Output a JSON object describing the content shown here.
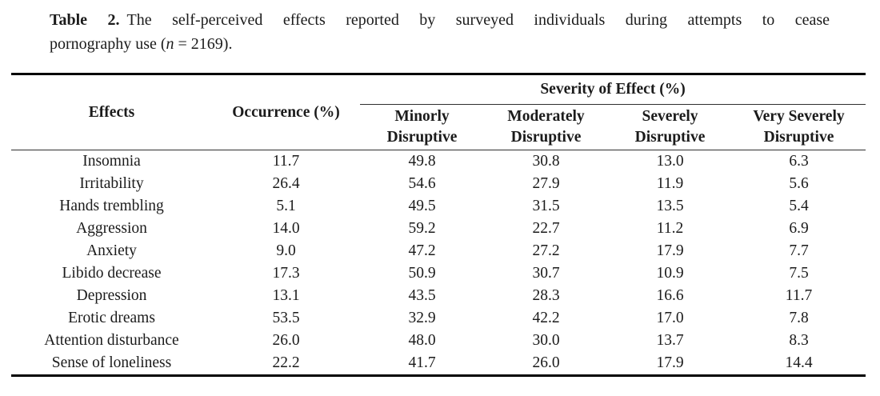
{
  "caption": {
    "label": "Table 2.",
    "line1": "The self-perceived effects reported by surveyed individuals during attempts to cease",
    "line2_prefix": "pornography use (",
    "line2_var": "n",
    "line2_suffix": " = 2169)."
  },
  "table": {
    "col_effects": "Effects",
    "col_occurrence": "Occurrence (%)",
    "severity_group": "Severity of Effect (%)",
    "severity_cols": [
      {
        "line1": "Minorly",
        "line2": "Disruptive"
      },
      {
        "line1": "Moderately",
        "line2": "Disruptive"
      },
      {
        "line1": "Severely",
        "line2": "Disruptive"
      },
      {
        "line1": "Very Severely",
        "line2": "Disruptive"
      }
    ],
    "rows": [
      {
        "effect": "Insomnia",
        "occurrence": "11.7",
        "minorly": "49.8",
        "moderately": "30.8",
        "severely": "13.0",
        "very_severely": "6.3"
      },
      {
        "effect": "Irritability",
        "occurrence": "26.4",
        "minorly": "54.6",
        "moderately": "27.9",
        "severely": "11.9",
        "very_severely": "5.6"
      },
      {
        "effect": "Hands trembling",
        "occurrence": "5.1",
        "minorly": "49.5",
        "moderately": "31.5",
        "severely": "13.5",
        "very_severely": "5.4"
      },
      {
        "effect": "Aggression",
        "occurrence": "14.0",
        "minorly": "59.2",
        "moderately": "22.7",
        "severely": "11.2",
        "very_severely": "6.9"
      },
      {
        "effect": "Anxiety",
        "occurrence": "9.0",
        "minorly": "47.2",
        "moderately": "27.2",
        "severely": "17.9",
        "very_severely": "7.7"
      },
      {
        "effect": "Libido decrease",
        "occurrence": "17.3",
        "minorly": "50.9",
        "moderately": "30.7",
        "severely": "10.9",
        "very_severely": "7.5"
      },
      {
        "effect": "Depression",
        "occurrence": "13.1",
        "minorly": "43.5",
        "moderately": "28.3",
        "severely": "16.6",
        "very_severely": "11.7"
      },
      {
        "effect": "Erotic dreams",
        "occurrence": "53.5",
        "minorly": "32.9",
        "moderately": "42.2",
        "severely": "17.0",
        "very_severely": "7.8"
      },
      {
        "effect": "Attention disturbance",
        "occurrence": "26.0",
        "minorly": "48.0",
        "moderately": "30.0",
        "severely": "13.7",
        "very_severely": "8.3"
      },
      {
        "effect": "Sense of loneliness",
        "occurrence": "22.2",
        "minorly": "41.7",
        "moderately": "26.0",
        "severely": "17.9",
        "very_severely": "14.4"
      }
    ]
  },
  "colors": {
    "text": "#1b1b1b",
    "rule_thick": "#000000",
    "rule_thin": "#2f2f2f",
    "background": "#ffffff"
  }
}
